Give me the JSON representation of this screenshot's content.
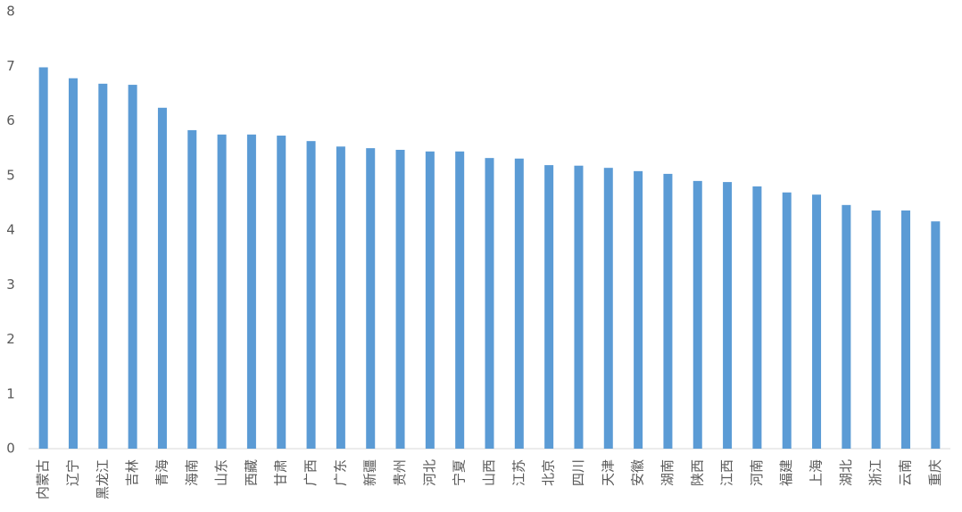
{
  "chart_data": {
    "type": "bar",
    "categories": [
      "内蒙古",
      "辽宁",
      "黑龙江",
      "吉林",
      "青海",
      "海南",
      "山东",
      "西藏",
      "甘肃",
      "广西",
      "广东",
      "新疆",
      "贵州",
      "河北",
      "宁夏",
      "山西",
      "江苏",
      "北京",
      "四川",
      "天津",
      "安徽",
      "湖南",
      "陕西",
      "江西",
      "河南",
      "福建",
      "上海",
      "湖北",
      "浙江",
      "云南",
      "重庆"
    ],
    "values": [
      6.98,
      6.78,
      6.68,
      6.66,
      6.24,
      5.83,
      5.75,
      5.75,
      5.73,
      5.63,
      5.53,
      5.5,
      5.47,
      5.44,
      5.44,
      5.32,
      5.31,
      5.19,
      5.18,
      5.14,
      5.08,
      5.03,
      4.9,
      4.88,
      4.8,
      4.69,
      4.65,
      4.46,
      4.36,
      4.36,
      4.16
    ],
    "color": "#5b9bd5",
    "ylim": [
      0,
      8
    ],
    "yticks": [
      0,
      1,
      2,
      3,
      4,
      5,
      6,
      7,
      8
    ],
    "grid": false
  }
}
